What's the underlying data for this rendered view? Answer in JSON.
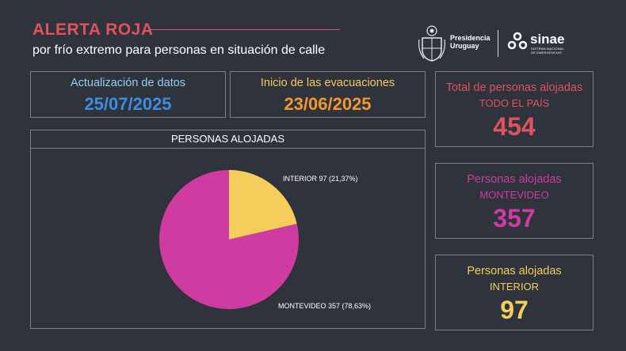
{
  "header": {
    "title": "ALERTA ROJA",
    "subtitle": "por frío extremo para personas en situación de calle",
    "title_color": "#e0525e"
  },
  "logos": {
    "presidencia_line1": "Presidencia",
    "presidencia_line2": "Uruguay",
    "sinae_name": "sinae",
    "sinae_sub_line1": "SISTEMA NACIONAL",
    "sinae_sub_line2": "DE EMERGENCIAS"
  },
  "update_box": {
    "label": "Actualización de datos",
    "value": "25/07/2025",
    "label_color": "#8fd0ef",
    "value_color": "#3d8de0"
  },
  "evac_box": {
    "label": "Inicio de las evacuaciones",
    "value": "23/06/2025",
    "label_color": "#f6c85f",
    "value_color": "#f0992e"
  },
  "total_box": {
    "label": "Total de personas alojadas",
    "sublabel": "TODO EL PAÍS",
    "value": "454",
    "color": "#e0525e"
  },
  "montevideo_box": {
    "label": "Personas alojadas",
    "sublabel": "MONTEVIDEO",
    "value": "357",
    "color": "#cf3ba0"
  },
  "interior_box": {
    "label": "Personas alojadas",
    "sublabel": "INTERIOR",
    "value": "97",
    "color": "#f6cd5b"
  },
  "pie_panel": {
    "title": "PERSONAS ALOJADAS"
  },
  "chart_data": {
    "type": "pie",
    "title": "PERSONAS ALOJADAS",
    "slices": [
      {
        "label": "INTERIOR 97 (21,37%)",
        "category": "INTERIOR",
        "value": 97,
        "percent": 21.37,
        "color": "#f6cd5b"
      },
      {
        "label": "MONTEVIDEO 357 (78,63%)",
        "category": "MONTEVIDEO",
        "value": 357,
        "percent": 78.63,
        "color": "#cf3ba0"
      }
    ],
    "legend": "none"
  }
}
